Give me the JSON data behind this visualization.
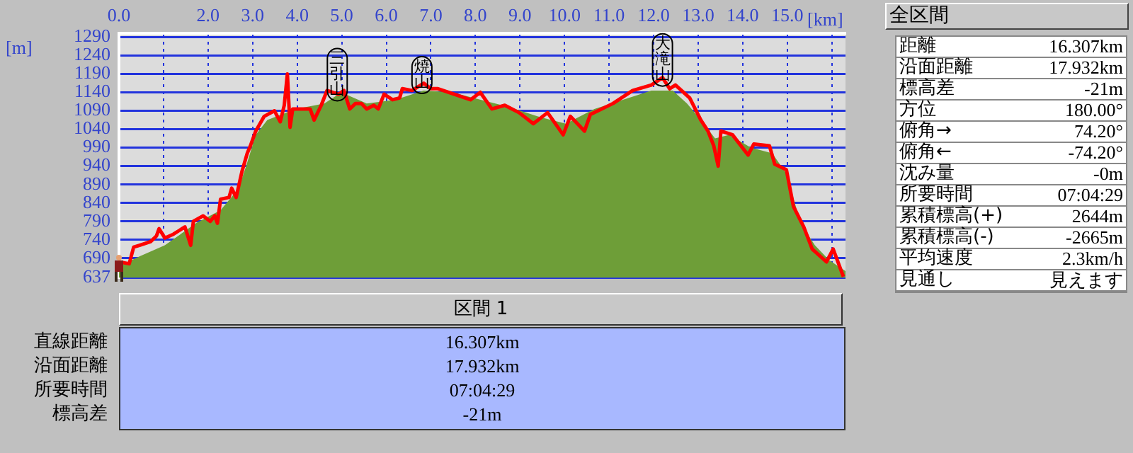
{
  "chart_data": [
    {
      "type": "area",
      "xlabel": "[km]",
      "ylabel": "[m]",
      "xlim": [
        0,
        16.307
      ],
      "ylim": [
        637,
        1300
      ],
      "xticks": [
        {
          "value": 0,
          "label": "0.0"
        },
        {
          "value": 1,
          "label": null
        },
        {
          "value": 2,
          "label": "2.0"
        },
        {
          "value": 3,
          "label": "3.0"
        },
        {
          "value": 4,
          "label": "4.0"
        },
        {
          "value": 5,
          "label": "5.0"
        },
        {
          "value": 6,
          "label": "6.0"
        },
        {
          "value": 7,
          "label": "7.0"
        },
        {
          "value": 8,
          "label": "8.0"
        },
        {
          "value": 9,
          "label": "9.0"
        },
        {
          "value": 10,
          "label": "10.0"
        },
        {
          "value": 11,
          "label": "11.0"
        },
        {
          "value": 12,
          "label": "12.0"
        },
        {
          "value": 13,
          "label": "13.0"
        },
        {
          "value": 14,
          "label": "14.0"
        },
        {
          "value": 15,
          "label": "15.0"
        },
        {
          "value": 16,
          "label": null
        }
      ],
      "yticks": [
        637,
        690,
        740,
        790,
        840,
        890,
        940,
        990,
        1040,
        1090,
        1140,
        1190,
        1240,
        1290
      ],
      "grid": true,
      "legend": false,
      "marker": "none",
      "series": [
        {
          "type": "area",
          "color": "#6e9e38",
          "x": [
            0,
            0.46,
            1.03,
            1.73,
            2.28,
            2.69,
            2.88,
            3.07,
            3.33,
            3.65,
            3.97,
            4.61,
            4.99,
            5.56,
            6.2,
            6.84,
            7.48,
            8.12,
            8.76,
            9.39,
            10.03,
            10.67,
            11.31,
            11.95,
            12.43,
            12.75,
            13.06,
            13.38,
            13.7,
            14.18,
            14.66,
            14.98,
            15.3,
            15.62,
            15.94,
            16.307
          ],
          "values": [
            668,
            695,
            725,
            785,
            820,
            880,
            950,
            1025,
            1065,
            1080,
            1095,
            1110,
            1140,
            1110,
            1120,
            1145,
            1140,
            1120,
            1100,
            1075,
            1055,
            1095,
            1120,
            1145,
            1145,
            1110,
            1065,
            1015,
            1025,
            990,
            975,
            920,
            785,
            725,
            685,
            655
          ]
        },
        {
          "type": "line",
          "color": "#ff0000",
          "x": [
            0,
            0.23,
            0.33,
            0.46,
            0.71,
            0.84,
            0.9,
            1.03,
            1.22,
            1.35,
            1.48,
            1.61,
            1.67,
            1.89,
            2.05,
            2.15,
            2.21,
            2.28,
            2.47,
            2.53,
            2.63,
            2.76,
            2.88,
            2.95,
            3.07,
            3.26,
            3.49,
            3.62,
            3.71,
            3.78,
            3.84,
            3.9,
            4.06,
            4.29,
            4.38,
            4.54,
            4.67,
            4.93,
            5.05,
            5.18,
            5.31,
            5.44,
            5.56,
            5.72,
            5.82,
            5.95,
            6.14,
            6.3,
            6.36,
            6.58,
            6.84,
            7.0,
            7.16,
            7.89,
            8.11,
            8.37,
            8.66,
            8.98,
            9.3,
            9.62,
            9.97,
            10.13,
            10.45,
            10.58,
            11.09,
            11.53,
            11.95,
            12.2,
            12.36,
            12.49,
            12.81,
            13.06,
            13.22,
            13.35,
            13.45,
            13.51,
            13.77,
            14.12,
            14.25,
            14.6,
            14.72,
            14.98,
            15.14,
            15.37,
            15.56,
            15.88,
            16.03,
            16.26
          ],
          "values": [
            680,
            675,
            720,
            725,
            735,
            750,
            770,
            745,
            755,
            765,
            775,
            725,
            790,
            805,
            790,
            805,
            785,
            850,
            855,
            880,
            855,
            925,
            975,
            995,
            1035,
            1075,
            1090,
            1060,
            1105,
            1190,
            1045,
            1095,
            1095,
            1095,
            1065,
            1105,
            1145,
            1135,
            1145,
            1095,
            1110,
            1110,
            1095,
            1105,
            1095,
            1135,
            1120,
            1125,
            1150,
            1145,
            1165,
            1150,
            1150,
            1120,
            1140,
            1095,
            1105,
            1085,
            1055,
            1085,
            1025,
            1075,
            1035,
            1080,
            1110,
            1145,
            1160,
            1180,
            1150,
            1160,
            1125,
            1065,
            1035,
            995,
            940,
            1035,
            1025,
            970,
            1000,
            995,
            945,
            930,
            830,
            775,
            715,
            680,
            715,
            640
          ]
        }
      ],
      "annotations": [
        {
          "text": "三引山",
          "x": 4.9,
          "y": 1140
        },
        {
          "text": "焼山",
          "x": 6.8,
          "y": 1160
        },
        {
          "text": "大滝山",
          "x": 12.2,
          "y": 1180
        }
      ]
    },
    {
      "type": "other",
      "title": "全区間",
      "annotations": [
        "距離",
        "16.307km",
        "沿面距離",
        "17.932km",
        "標高差",
        "-21m",
        "方位",
        "180.00°",
        "俯角→",
        "74.20°",
        "俯角←",
        "-74.20°",
        "沈み量",
        "-0m",
        "所要時間",
        "07:04:29",
        "累積標高(+)",
        "2644m",
        "累積標高(-)",
        "-2665m",
        "平均速度",
        "2.3km/h",
        "見通し",
        "見えます"
      ]
    },
    {
      "type": "other",
      "title": "区間 1",
      "annotations": [
        "直線距離",
        "16.307km",
        "沿面距離",
        "17.932km",
        "所要時間",
        "07:04:29",
        "標高差",
        "-21m"
      ]
    }
  ]
}
